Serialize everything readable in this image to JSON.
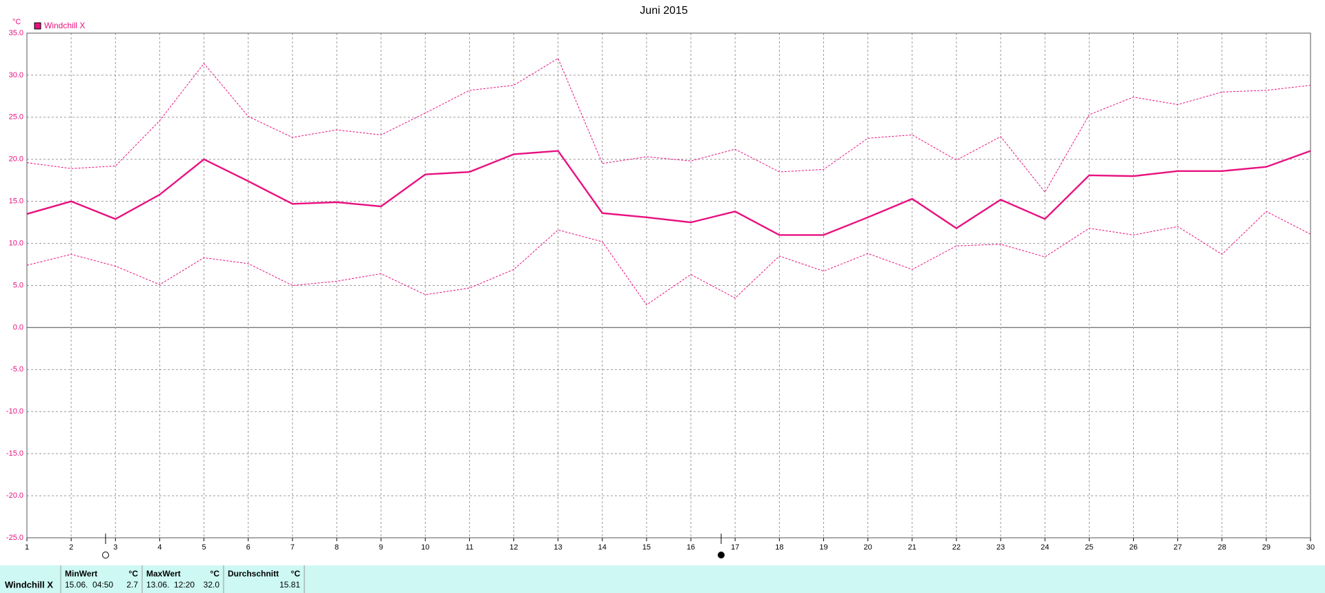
{
  "chart_data": {
    "type": "line",
    "title": "Juni 2015",
    "y_unit": "°C",
    "x": [
      1,
      2,
      3,
      4,
      5,
      6,
      7,
      8,
      9,
      10,
      11,
      12,
      13,
      14,
      15,
      16,
      17,
      18,
      19,
      20,
      21,
      22,
      23,
      24,
      25,
      26,
      27,
      28,
      29,
      30
    ],
    "xlim": [
      1,
      30
    ],
    "xticks": [
      1,
      2,
      3,
      4,
      5,
      6,
      7,
      8,
      9,
      10,
      11,
      12,
      13,
      14,
      15,
      16,
      17,
      18,
      19,
      20,
      21,
      22,
      23,
      24,
      25,
      26,
      27,
      28,
      29,
      30
    ],
    "ylim": [
      -25,
      35
    ],
    "yticks": [
      {
        "value": -25,
        "label": "-25.0"
      },
      {
        "value": -20,
        "label": "-20.0"
      },
      {
        "value": -15,
        "label": "-15.0"
      },
      {
        "value": -10,
        "label": "-10.0"
      },
      {
        "value": -5,
        "label": "-5.0"
      },
      {
        "value": 0,
        "label": "0.0"
      },
      {
        "value": 5,
        "label": "5.0"
      },
      {
        "value": 10,
        "label": "10.0"
      },
      {
        "value": 15,
        "label": "15.0"
      },
      {
        "value": 20,
        "label": "20.0"
      },
      {
        "value": 25,
        "label": "25.0"
      },
      {
        "value": 30,
        "label": "30.0"
      },
      {
        "value": 35,
        "label": "35.0"
      }
    ],
    "grid": true,
    "series": [
      {
        "name": "Windchill X",
        "color": "#e8117f",
        "style": "solid",
        "values": [
          13.5,
          15.0,
          12.9,
          15.8,
          20.0,
          17.4,
          14.7,
          14.9,
          14.4,
          18.2,
          18.5,
          20.6,
          21.0,
          13.6,
          13.1,
          12.5,
          13.8,
          11.0,
          11.0,
          13.1,
          15.3,
          11.8,
          15.2,
          12.9,
          18.1,
          18.0,
          18.6,
          18.6,
          19.1,
          21.0
        ]
      },
      {
        "color": "#e8117f",
        "style": "dotted",
        "values": [
          19.6,
          18.9,
          19.2,
          24.6,
          31.4,
          25.1,
          22.6,
          23.5,
          22.9,
          25.5,
          28.2,
          28.8,
          32.0,
          19.5,
          20.3,
          19.8,
          21.2,
          18.5,
          18.8,
          22.5,
          22.9,
          19.9,
          22.7,
          16.1,
          25.3,
          27.4,
          26.5,
          28.0,
          28.2,
          28.8
        ]
      },
      {
        "color": "#e8117f",
        "style": "dotted",
        "values": [
          7.4,
          8.7,
          7.3,
          5.1,
          8.3,
          7.6,
          5.0,
          5.5,
          6.4,
          3.9,
          4.7,
          6.9,
          11.6,
          10.2,
          2.7,
          6.3,
          3.5,
          8.5,
          6.7,
          8.8,
          6.9,
          9.7,
          9.9,
          8.4,
          11.8,
          11.0,
          12.0,
          8.7,
          13.8,
          11.1
        ]
      }
    ]
  },
  "table": {
    "row_label": "Windchill X",
    "columns": [
      {
        "header": "MinWert",
        "unit": "°C",
        "time": "15.06.  04:50",
        "value": "2.7"
      },
      {
        "header": "MaxWert",
        "unit": "°C",
        "time": "13.06.  12:20",
        "value": "32.0"
      },
      {
        "header": "Durchschnitt",
        "unit": "°C",
        "value": "15.81"
      }
    ]
  }
}
